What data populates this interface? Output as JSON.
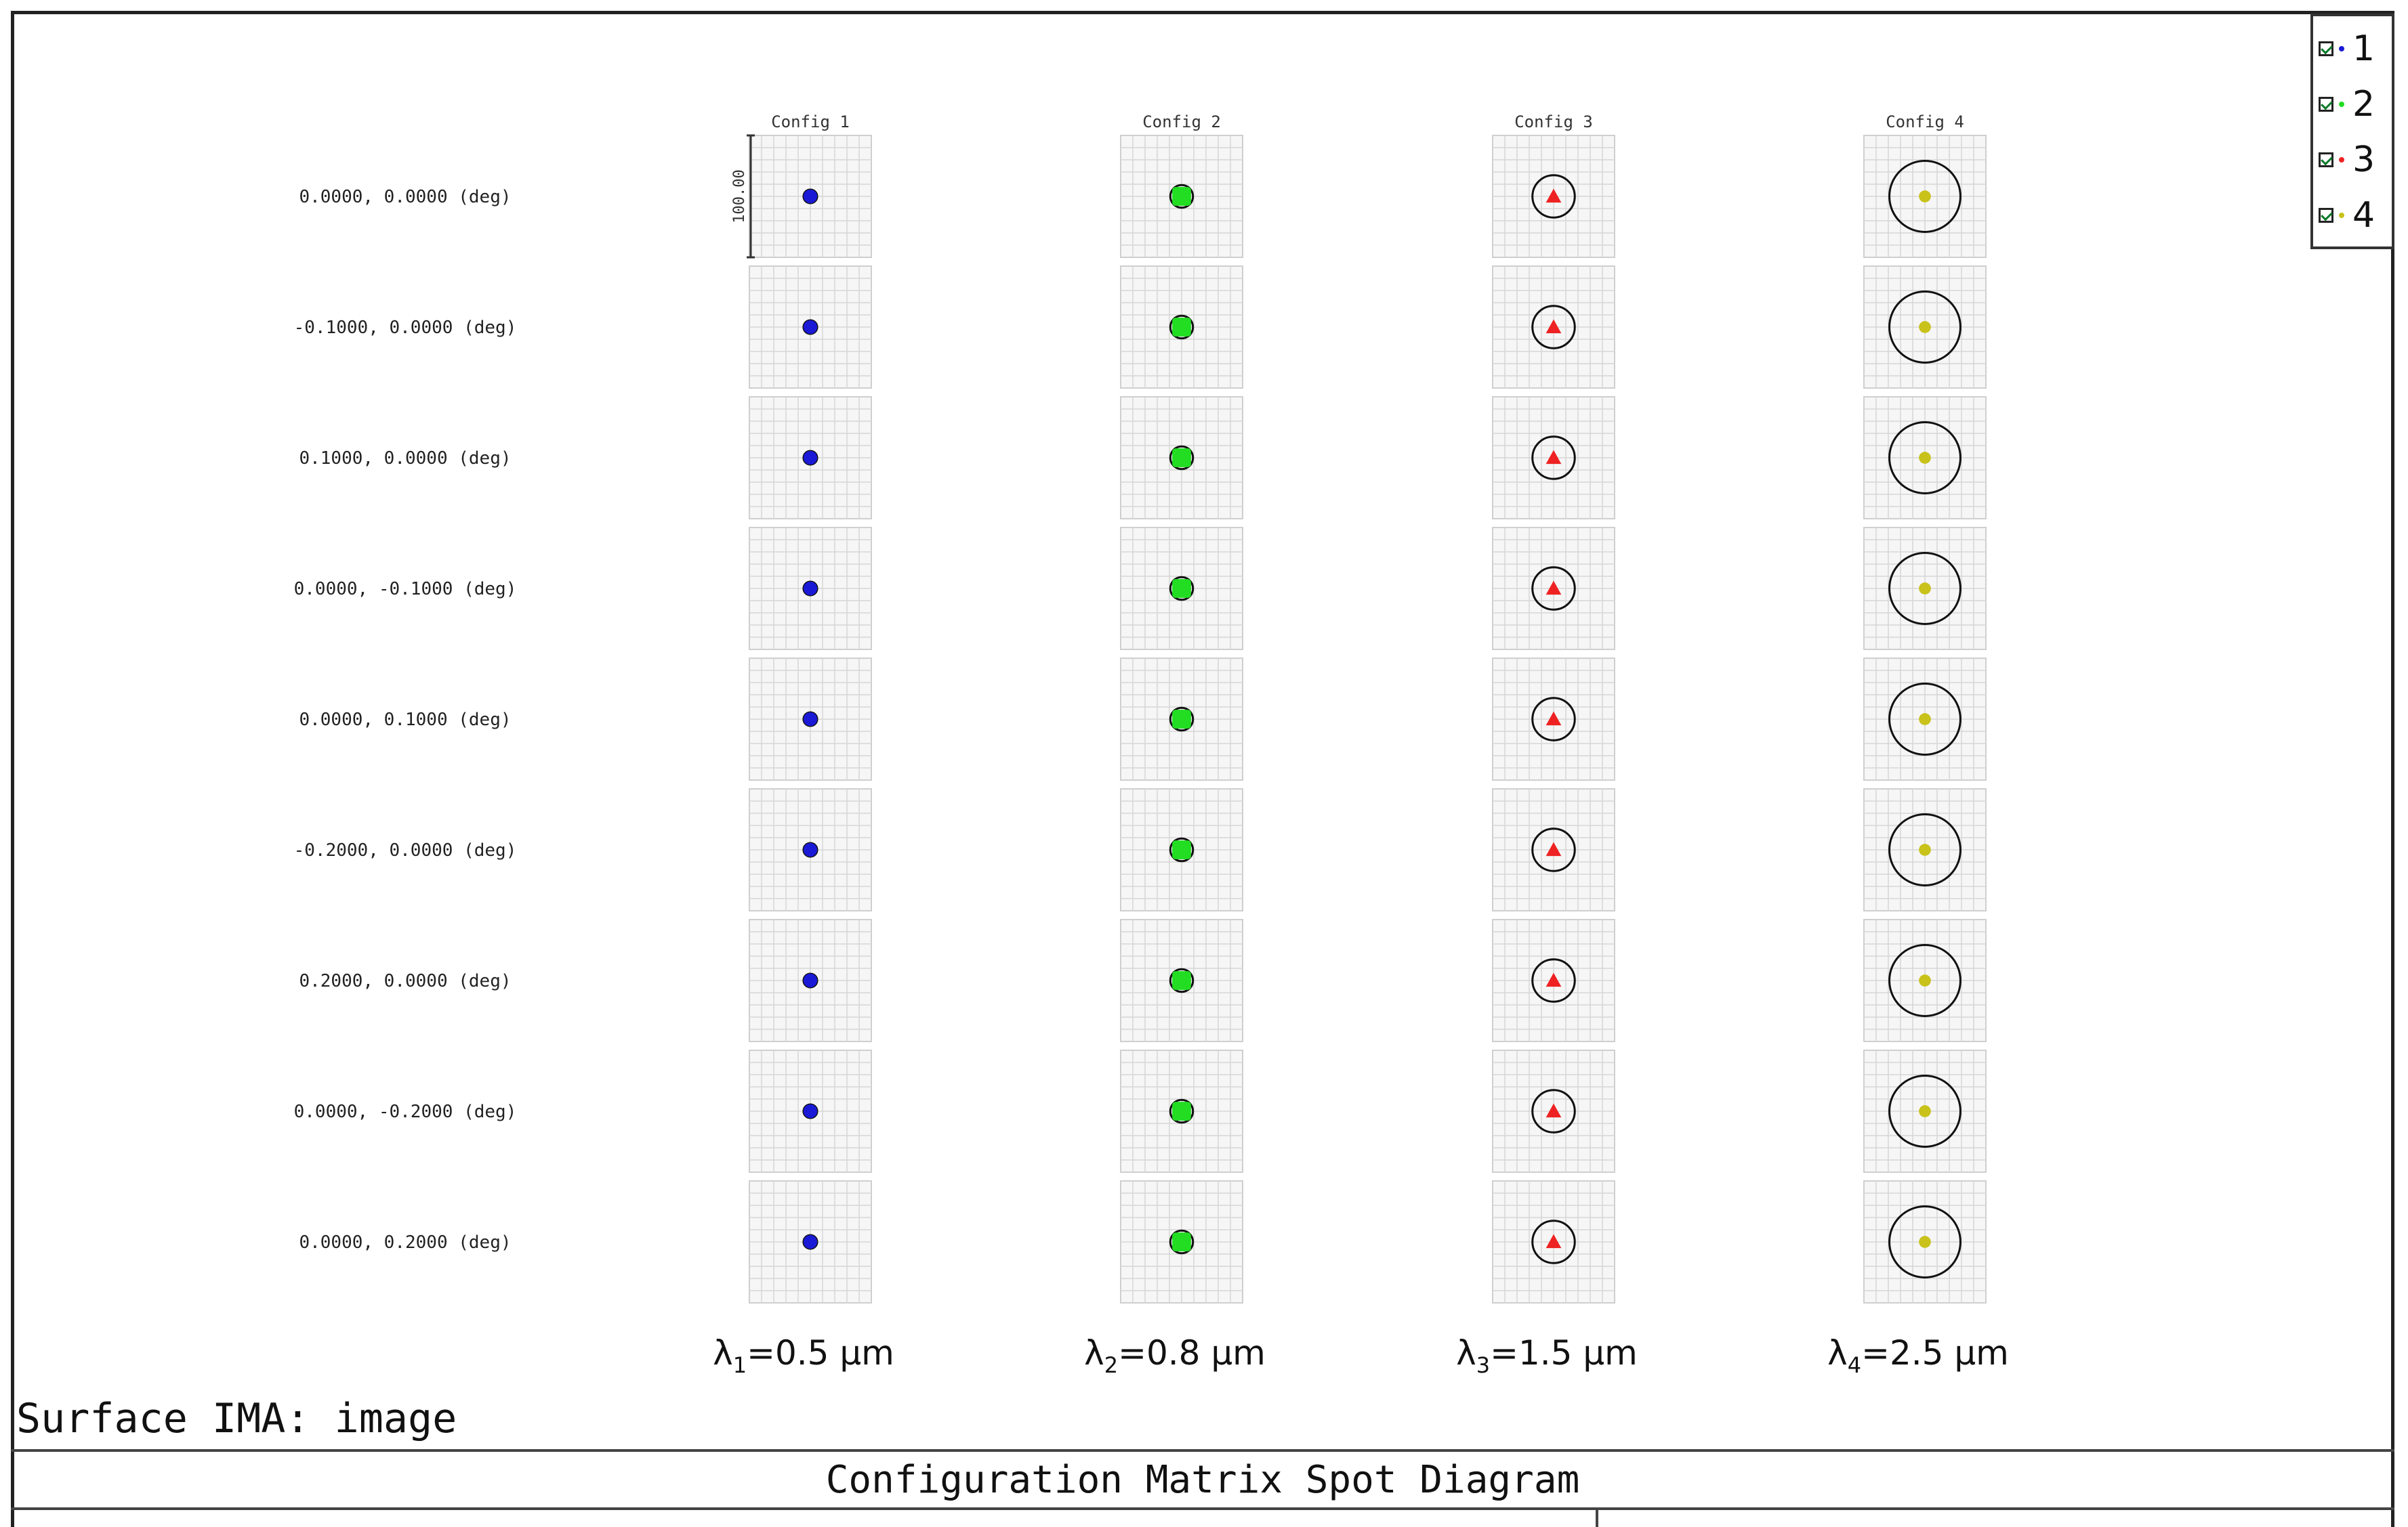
{
  "title": "Configuration Matrix Spot Diagram",
  "surface_label": "Surface IMA: image",
  "scale_bar_label": "100.00",
  "legend": [
    {
      "label": "1",
      "color": "#1a1ad6"
    },
    {
      "label": "2",
      "color": "#22dd22"
    },
    {
      "label": "3",
      "color": "#ee2222"
    },
    {
      "label": "4",
      "color": "#c8c21a"
    }
  ],
  "chart_data": {
    "type": "scatter",
    "title": "Configuration Matrix Spot Diagram",
    "columns": [
      "Config 1",
      "Config 2",
      "Config 3",
      "Config 4"
    ],
    "rows": [
      "0.0000, 0.0000 (deg)",
      "-0.1000, 0.0000 (deg)",
      "0.1000, 0.0000 (deg)",
      "0.0000, -0.1000 (deg)",
      "0.0000, 0.1000 (deg)",
      "-0.2000, 0.0000 (deg)",
      "0.2000, 0.0000 (deg)",
      "0.0000, -0.2000 (deg)",
      "0.0000, 0.2000 (deg)"
    ],
    "wavelengths": [
      {
        "prefix": "λ",
        "sub": "1",
        "text": "=0.5 μm"
      },
      {
        "prefix": "λ",
        "sub": "2",
        "text": "=0.8 μm"
      },
      {
        "prefix": "λ",
        "sub": "3",
        "text": "=1.5 μm"
      },
      {
        "prefix": "λ",
        "sub": "4",
        "text": "=2.5 μm"
      }
    ],
    "series": [
      {
        "name": "1",
        "color": "#1a1ad6",
        "marker": "cross",
        "airy_radius_frac": 0.09,
        "spot_radius_frac": 0.08
      },
      {
        "name": "2",
        "color": "#22dd22",
        "marker": "square",
        "airy_radius_frac": 0.15,
        "spot_radius_frac": 0.11
      },
      {
        "name": "3",
        "color": "#ee2222",
        "marker": "triangle",
        "airy_radius_frac": 0.28,
        "spot_radius_frac": 0.09
      },
      {
        "name": "4",
        "color": "#c8c21a",
        "marker": "plus",
        "airy_radius_frac": 0.47,
        "spot_radius_frac": 0.07
      }
    ],
    "scale_um": 100.0,
    "grid": true
  }
}
